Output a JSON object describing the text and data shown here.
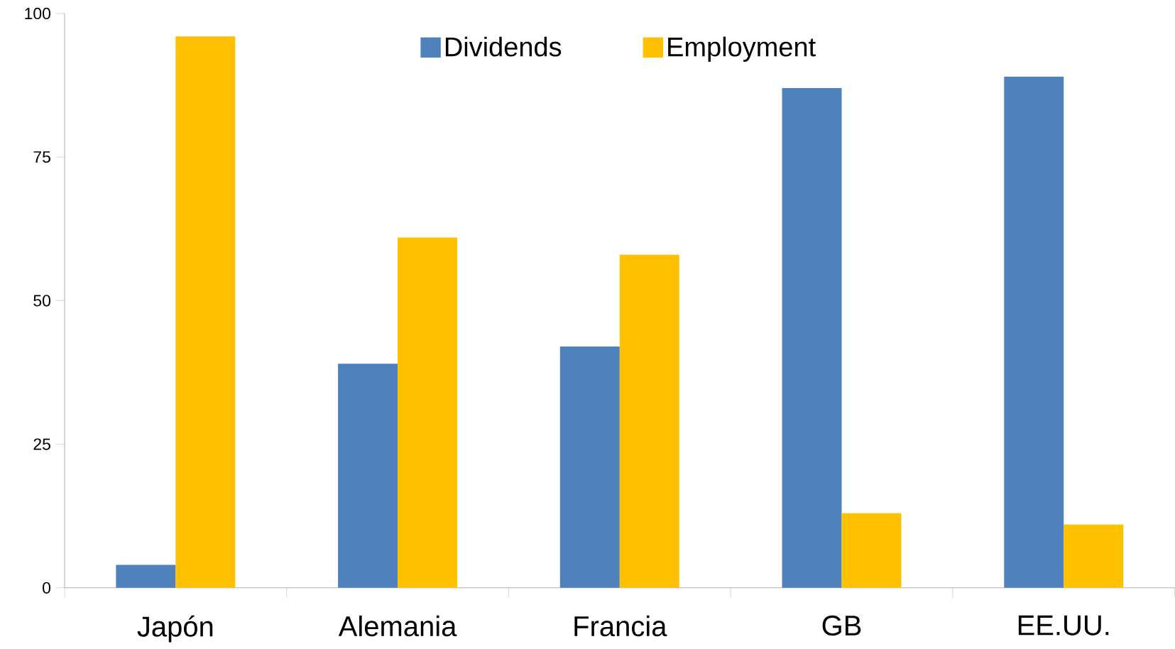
{
  "chart_data": {
    "type": "bar",
    "categories": [
      "Japón",
      "Alemania",
      "Francia",
      "GB",
      "EE.UU."
    ],
    "series": [
      {
        "name": "Dividends",
        "color": "#4f81bd",
        "values": [
          4,
          39,
          42,
          87,
          89
        ]
      },
      {
        "name": "Employment",
        "color": "#ffc000",
        "values": [
          96,
          61,
          58,
          13,
          11
        ]
      }
    ],
    "ylim": [
      0,
      100
    ],
    "yticks": [
      0,
      25,
      50,
      75,
      100
    ],
    "grid": false,
    "legend": "top"
  }
}
